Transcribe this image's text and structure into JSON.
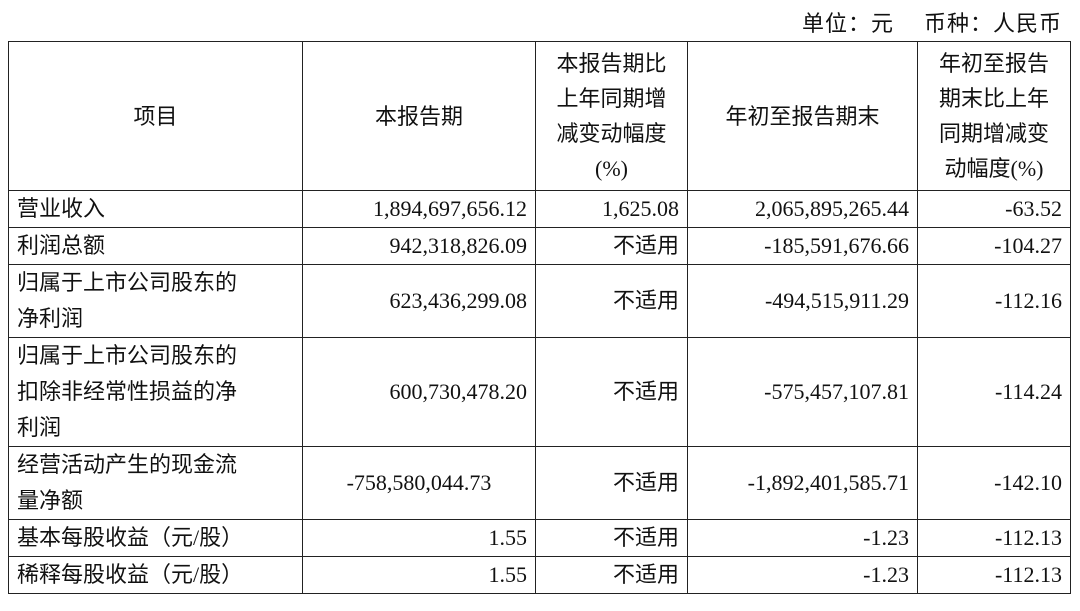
{
  "unit": {
    "unit_label": "单位：元",
    "currency_label": "币种：人民币"
  },
  "table": {
    "headers": [
      "项目",
      "本报告期",
      "本报告期比\n上年同期增\n减变动幅度\n(%)",
      "年初至报告期末",
      "年初至报告\n期末比上年\n同期增减变\n动幅度(%)"
    ],
    "rows": [
      {
        "item": "营业收入",
        "current": "1,894,697,656.12",
        "current_change": "1,625.08",
        "ytd": "2,065,895,265.44",
        "ytd_change": "-63.52"
      },
      {
        "item": "利润总额",
        "current": "942,318,826.09",
        "current_change": "不适用",
        "ytd": "-185,591,676.66",
        "ytd_change": "-104.27"
      },
      {
        "item": "归属于上市公司股东的\n净利润",
        "current": "623,436,299.08",
        "current_change": "不适用",
        "ytd": "-494,515,911.29",
        "ytd_change": "-112.16"
      },
      {
        "item": "归属于上市公司股东的\n扣除非经常性损益的净\n利润",
        "current": "600,730,478.20",
        "current_change": "不适用",
        "ytd": "-575,457,107.81",
        "ytd_change": "-114.24"
      },
      {
        "item": "经营活动产生的现金流\n量净额",
        "current": "-758,580,044.73",
        "current_change": "不适用",
        "ytd": "-1,892,401,585.71",
        "ytd_change": "-142.10"
      },
      {
        "item": "基本每股收益（元/股）",
        "current": "1.55",
        "current_change": "不适用",
        "ytd": "-1.23",
        "ytd_change": "-112.13"
      },
      {
        "item": "稀释每股收益（元/股）",
        "current": "1.55",
        "current_change": "不适用",
        "ytd": "-1.23",
        "ytd_change": "-112.13"
      }
    ]
  }
}
